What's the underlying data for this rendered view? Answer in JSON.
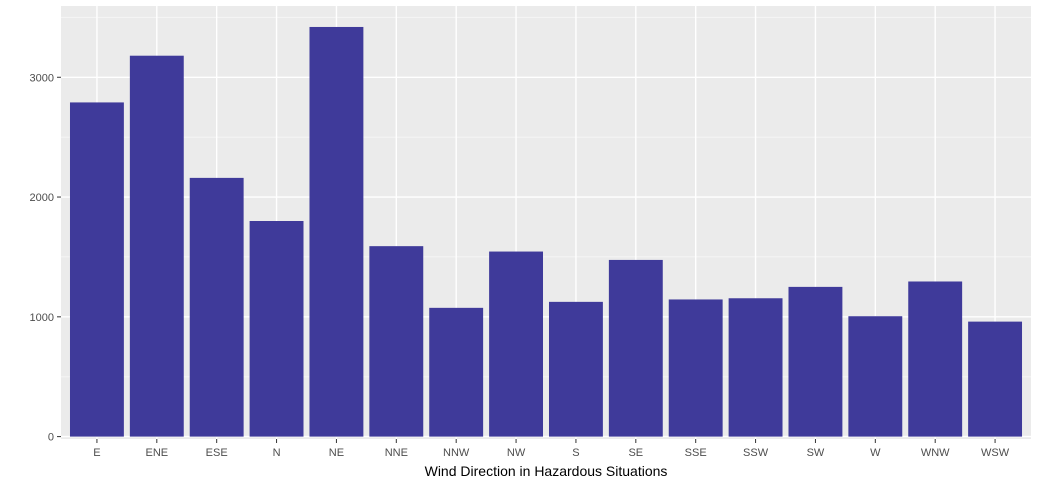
{
  "chart_data": {
    "type": "bar",
    "xlabel": "Wind Direction in Hazardous Situations",
    "ylabel": "",
    "categories": [
      "E",
      "ENE",
      "ESE",
      "N",
      "NE",
      "NNE",
      "NNW",
      "NW",
      "S",
      "SE",
      "SSE",
      "SSW",
      "SW",
      "W",
      "WNW",
      "WSW"
    ],
    "values": [
      2790,
      3180,
      2160,
      1800,
      3420,
      1590,
      1075,
      1545,
      1125,
      1475,
      1145,
      1155,
      1250,
      1005,
      1295,
      960
    ],
    "ylim": [
      -20,
      3595
    ],
    "yticks": [
      0,
      1000,
      2000,
      3000
    ],
    "ytick_labels": [
      "0",
      "1000",
      "2000",
      "3000"
    ],
    "grid": true,
    "colors": {
      "bar": "#3f3a9a",
      "panel_background": "#ebebeb",
      "grid_major": "#ffffff",
      "grid_minor": "#f5f5f5"
    }
  }
}
